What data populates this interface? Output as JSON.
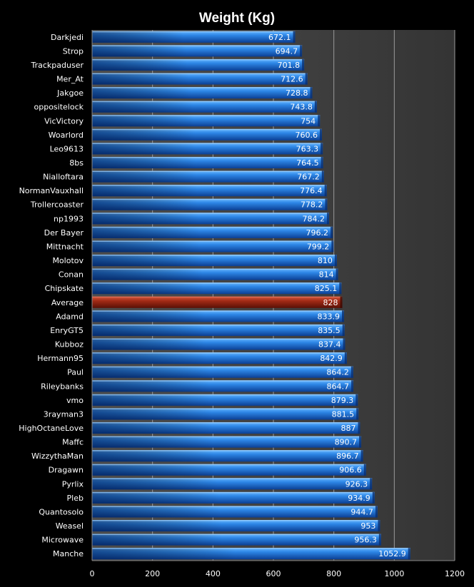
{
  "chart_data": {
    "type": "bar",
    "orientation": "horizontal",
    "title": "Weight (Kg)",
    "xlabel": "",
    "ylabel": "",
    "xlim": [
      0,
      1200
    ],
    "x_ticks": [
      "0",
      "200",
      "400",
      "600",
      "800",
      "1000",
      "1200"
    ],
    "grid": "vertical",
    "categories": [
      "Darkjedi",
      "Strop",
      "Trackpaduser",
      "Mer_At",
      "Jakgoe",
      "oppositelock",
      "VicVictory",
      "Woarlord",
      "Leo9613",
      "8bs",
      "Nialloftara",
      "NormanVauxhall",
      "Trollercoaster",
      "np1993",
      "Der Bayer",
      "Mittnacht",
      "Molotov",
      "Conan",
      "Chipskate",
      "Average",
      "Adamd",
      "EnryGT5",
      "Kubboz",
      "Hermann95",
      "Paul",
      "Rileybanks",
      "vmo",
      "3rayman3",
      "HighOctaneLove",
      "Maffc",
      "WizzythaMan",
      "Dragawn",
      "Pyrlix",
      "Pleb",
      "Quantosolo",
      "Weasel",
      "Microwave",
      "Manche"
    ],
    "values": [
      672.1,
      694.7,
      701.8,
      712.6,
      728.8,
      743.8,
      754,
      760.6,
      763.3,
      764.5,
      767.2,
      776.4,
      778.2,
      784.2,
      796.2,
      799.2,
      810,
      814,
      825.1,
      828,
      833.9,
      835.5,
      837.4,
      842.9,
      864.2,
      864.7,
      879.3,
      881.5,
      887,
      890.7,
      896.7,
      906.6,
      926.3,
      934.9,
      944.7,
      953,
      956.3,
      1052.9
    ],
    "value_labels": [
      "672.1",
      "694.7",
      "701.8",
      "712.6",
      "728.8",
      "743.8",
      "754",
      "760.6",
      "763.3",
      "764.5",
      "767.2",
      "776.4",
      "778.2",
      "784.2",
      "796.2",
      "799.2",
      "810",
      "814",
      "825.1",
      "828",
      "833.9",
      "835.5",
      "837.4",
      "842.9",
      "864.2",
      "864.7",
      "879.3",
      "881.5",
      "887",
      "890.7",
      "896.7",
      "906.6",
      "926.3",
      "934.9",
      "944.7",
      "953",
      "956.3",
      "1052.9"
    ],
    "highlight_category": "Average",
    "colors": {
      "background": "#000000",
      "plot_area": "#3a3a3a",
      "gridline": "#9a9a9a",
      "bar": "#1565c0",
      "bar_light": "#4aa3ff",
      "highlight": "#7a1a0c",
      "highlight_light": "#c8412a",
      "text": "#ffffff"
    }
  }
}
